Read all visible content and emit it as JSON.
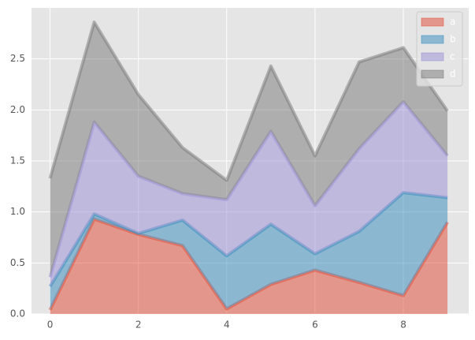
{
  "chart_data": {
    "type": "stackplot",
    "x": [
      0,
      1,
      2,
      3,
      4,
      5,
      6,
      7,
      8,
      9
    ],
    "series": [
      {
        "name": "a",
        "color": "#E24A33",
        "values": [
          0.04,
          0.93,
          0.78,
          0.67,
          0.05,
          0.29,
          0.43,
          0.31,
          0.18,
          0.9
        ]
      },
      {
        "name": "b",
        "color": "#348ABD",
        "values": [
          0.23,
          0.05,
          0.01,
          0.25,
          0.52,
          0.59,
          0.16,
          0.5,
          1.01,
          0.24
        ]
      },
      {
        "name": "c",
        "color": "#988ED5",
        "values": [
          0.09,
          0.9,
          0.56,
          0.26,
          0.55,
          0.91,
          0.47,
          0.81,
          0.89,
          0.41
        ]
      },
      {
        "name": "d",
        "color": "#777777",
        "values": [
          0.97,
          0.98,
          0.8,
          0.45,
          0.19,
          0.64,
          0.49,
          0.85,
          0.53,
          0.44
        ]
      }
    ],
    "xlim": [
      -0.42,
      9.48
    ],
    "ylim": [
      0,
      3.0
    ],
    "xticks": [
      0,
      2,
      4,
      6,
      8
    ],
    "yticks": [
      {
        "value": 0,
        "label": "0.0"
      },
      0.5,
      {
        "value": 1,
        "label": "1.0"
      },
      1.5,
      {
        "value": 2,
        "label": "2.0"
      },
      2.5
    ],
    "grid": true,
    "legend": "upper right"
  }
}
